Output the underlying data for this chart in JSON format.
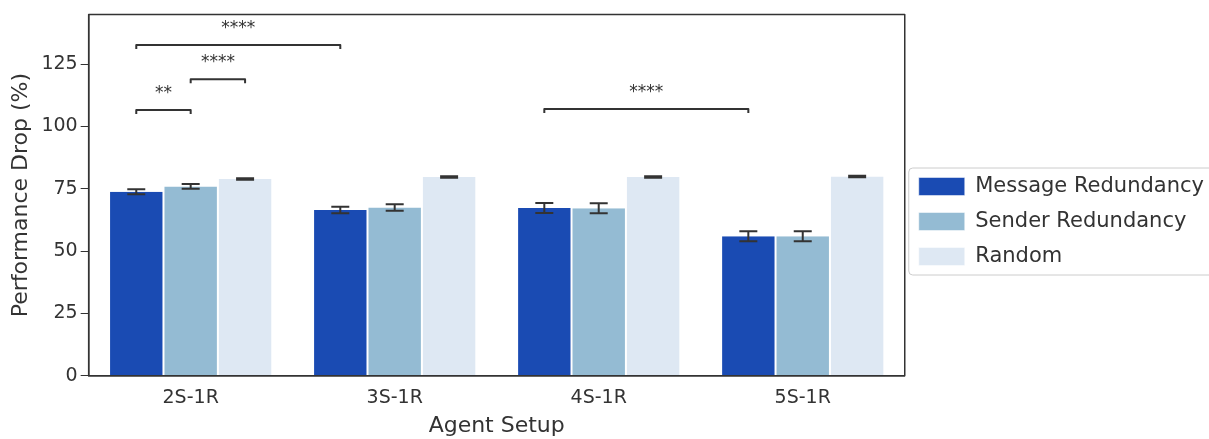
{
  "chart_data": {
    "type": "bar",
    "xlabel": "Agent Setup",
    "ylabel": "Performance Drop (%)",
    "categories": [
      "2S-1R",
      "3S-1R",
      "4S-1R",
      "5S-1R"
    ],
    "series": [
      {
        "name": "Message Redundancy",
        "color": "#1a4bb3",
        "values": [
          73.8,
          66.5,
          67.3,
          56.0
        ],
        "errors": [
          1.0,
          1.3,
          2.0,
          2.0
        ]
      },
      {
        "name": "Sender Redundancy",
        "color": "#94bbd3",
        "values": [
          76.0,
          67.5,
          67.2,
          56.0
        ],
        "errors": [
          1.0,
          1.3,
          2.0,
          2.0
        ]
      },
      {
        "name": "Random",
        "color": "#dee8f3",
        "values": [
          79.0,
          79.8,
          79.8,
          80.0
        ],
        "errors": [
          0.3,
          0.3,
          0.3,
          0.3
        ]
      }
    ],
    "ylim": [
      0,
      145
    ],
    "yticks": [
      0,
      25,
      50,
      75,
      100,
      125
    ],
    "grid": false,
    "legend": "right",
    "annotations": [
      "****",
      "****",
      "**",
      "****"
    ]
  }
}
